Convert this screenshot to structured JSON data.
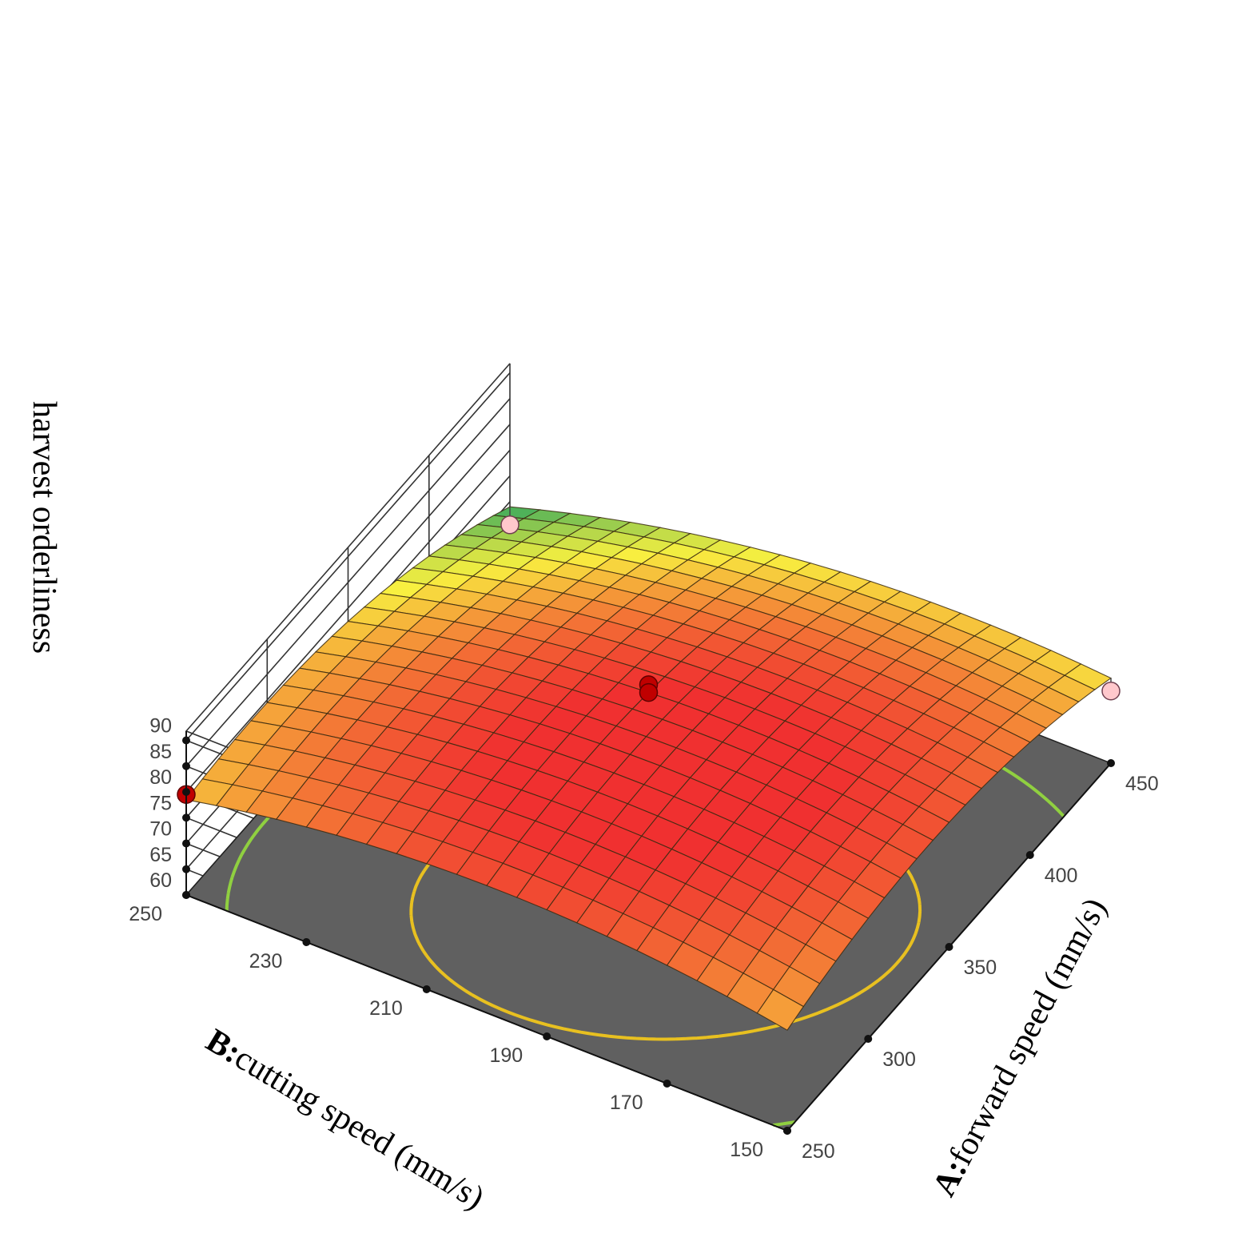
{
  "chart_data": {
    "type": "surface",
    "zlabel": "harvest orderliness",
    "xlabel_prefix": "A:",
    "xlabel_text": "forward speed  (mm/s)",
    "ylabel_prefix": "B:",
    "ylabel_text": "cutting speed  (mm/s)",
    "x_range": [
      250,
      450
    ],
    "y_range": [
      150,
      250
    ],
    "z_range": [
      60,
      90
    ],
    "x_ticks": [
      "250",
      "300",
      "350",
      "400",
      "450"
    ],
    "y_ticks": [
      "150",
      "170",
      "190",
      "210",
      "230",
      "250"
    ],
    "z_ticks": [
      "60",
      "65",
      "70",
      "75",
      "80",
      "85",
      "90"
    ],
    "surface_corner_values": {
      "A250_B150": 79.5,
      "A250_B250": 78.5,
      "A450_B150": 76.5,
      "A450_B250": 64.0,
      "peak_approx": 86.5
    },
    "design_points": [
      {
        "A": 350,
        "B": 200,
        "value": 88.0,
        "relation": "above"
      },
      {
        "A": 350,
        "B": 200,
        "value": 86.5,
        "relation": "above"
      },
      {
        "A": 250,
        "B": 250,
        "value": 79.5,
        "relation": "above"
      },
      {
        "A": 450,
        "B": 150,
        "value": 74.0,
        "relation": "below"
      },
      {
        "A": 450,
        "B": 250,
        "value": 60.5,
        "relation": "below"
      }
    ],
    "contour_levels": [
      65,
      70,
      75,
      80,
      85
    ],
    "grid": true,
    "colors": {
      "floor": "#606060",
      "contour_low": "#1e64c8",
      "contour_mid": "#20c8e0",
      "contour_green": "#30c060",
      "contour_yellowgreen": "#90d040",
      "contour_high": "#e8c020",
      "point_above": "#c00000",
      "point_below": "#ffc8cc",
      "surface_low": "#20a060",
      "surface_mid": "#f8f040",
      "surface_high": "#f03030"
    }
  }
}
